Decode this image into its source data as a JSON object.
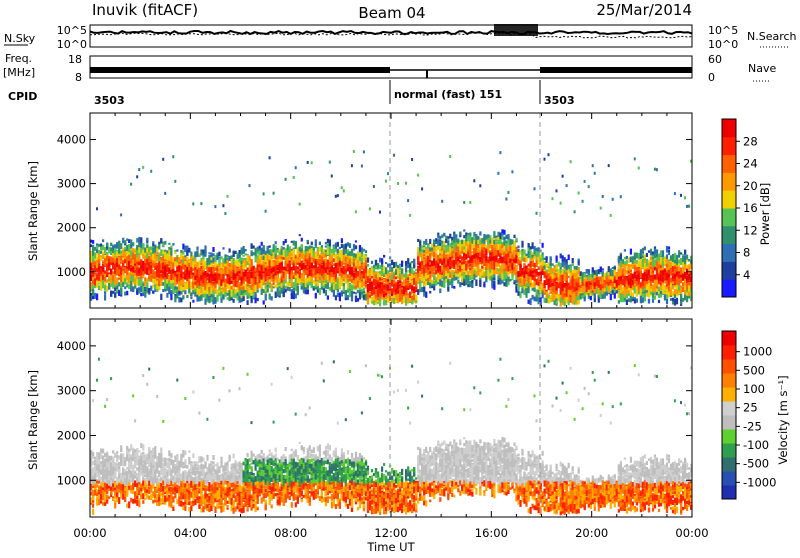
{
  "header": {
    "station": "Inuvik (fitACF)",
    "beam": "Beam 04",
    "date": "25/Mar/2014"
  },
  "noise_panel": {
    "left_label": "N.Sky",
    "left_ticks": [
      "10^5",
      "10^0"
    ],
    "right_ticks": [
      "10^5",
      "10^0"
    ],
    "right_label": "N.Search"
  },
  "freq_panel": {
    "left_label_line1": "Freq.",
    "left_label_line2": "[MHz]",
    "left_ticks": [
      "18",
      "8"
    ],
    "right_ticks": [
      "60",
      "0"
    ],
    "right_label": "Nave"
  },
  "cpid": {
    "label": "CPID",
    "segments": [
      {
        "start_hour": 0,
        "text": "3503"
      },
      {
        "start_hour": 12,
        "text": "normal (fast) 151"
      },
      {
        "start_hour": 18,
        "text": "3503"
      }
    ]
  },
  "colors": {
    "power": [
      "#1a1aff",
      "#1f3f9f",
      "#2d6fb2",
      "#2f8f6f",
      "#55c455",
      "#f0d000",
      "#ff9900",
      "#ff6000",
      "#ff2000",
      "#ee0000"
    ],
    "velocity": [
      "#1f2faf",
      "#2850b0",
      "#2f6f6f",
      "#2f9f4f",
      "#60d030",
      "#bebebe",
      "#cfcfcf",
      "#ffb000",
      "#ff8000",
      "#ff5000",
      "#ff2000",
      "#ee0000"
    ]
  },
  "chart_data": [
    {
      "type": "heatmap",
      "name": "power",
      "x": {
        "label": "",
        "range_hours": [
          0,
          24
        ],
        "ticks": [
          "00:00",
          "04:00",
          "08:00",
          "12:00",
          "16:00",
          "20:00",
          "00:00"
        ]
      },
      "y": {
        "label": "Slant Range [km]",
        "range": [
          180,
          4600
        ],
        "ticks": [
          1000,
          2000,
          3000,
          4000
        ]
      },
      "colorbar": {
        "label": "Power [dB]",
        "range": [
          0,
          32
        ],
        "ticks": [
          "4",
          "8",
          "12",
          "16",
          "20",
          "24",
          "28"
        ]
      },
      "dashed_markers_hours": [
        12,
        18
      ]
    },
    {
      "type": "heatmap",
      "name": "velocity",
      "x": {
        "label": "Time UT",
        "range_hours": [
          0,
          24
        ],
        "ticks": [
          "00:00",
          "04:00",
          "08:00",
          "12:00",
          "16:00",
          "20:00",
          "00:00"
        ]
      },
      "y": {
        "label": "Slant Range [km]",
        "range": [
          180,
          4600
        ],
        "ticks": [
          1000,
          2000,
          3000,
          4000
        ]
      },
      "colorbar": {
        "label": "Velocity [m s⁻¹]",
        "ticks": [
          "1000",
          "500",
          "100",
          "25",
          "-25",
          "-100",
          "-500",
          "-1000"
        ]
      },
      "dashed_markers_hours": [
        12,
        18
      ]
    }
  ]
}
